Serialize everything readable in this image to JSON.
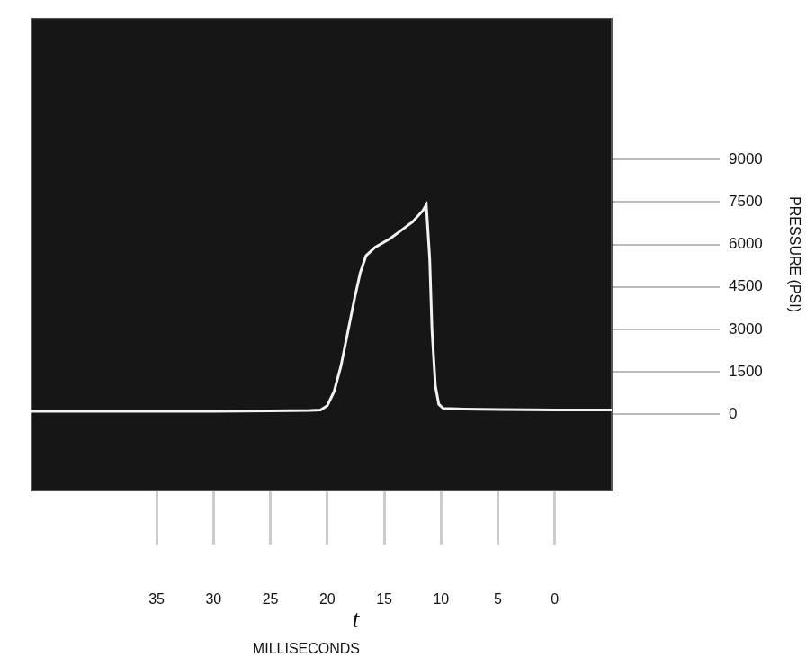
{
  "chart_data": {
    "type": "line",
    "x_label": "MILLISECONDS",
    "y_label": "PRESSURE (PSI)",
    "annotations": [
      "t"
    ],
    "x": [
      46,
      40,
      35,
      30,
      25,
      21.5,
      20.6,
      20.0,
      19.4,
      18.8,
      18.2,
      17.6,
      17.1,
      16.6,
      15.8,
      14.5,
      13.5,
      12.5,
      11.6,
      11.3,
      11.0,
      10.8,
      10.5,
      10.2,
      9.8,
      8,
      5,
      0,
      -5
    ],
    "values": [
      100,
      100,
      100,
      100,
      120,
      130,
      150,
      300,
      800,
      1700,
      2900,
      4100,
      5000,
      5600,
      5900,
      6200,
      6500,
      6800,
      7200,
      7400,
      5500,
      3000,
      1000,
      350,
      200,
      180,
      160,
      150,
      150
    ],
    "color": "#f2f2f2",
    "xlim": [
      46,
      -5
    ],
    "xticks": [
      35,
      30,
      25,
      20,
      15,
      10,
      5,
      0
    ],
    "ylim": [
      -2700,
      14000
    ],
    "yticks": [
      0,
      1500,
      3000,
      4500,
      6000,
      7500,
      9000
    ],
    "grid": false
  }
}
